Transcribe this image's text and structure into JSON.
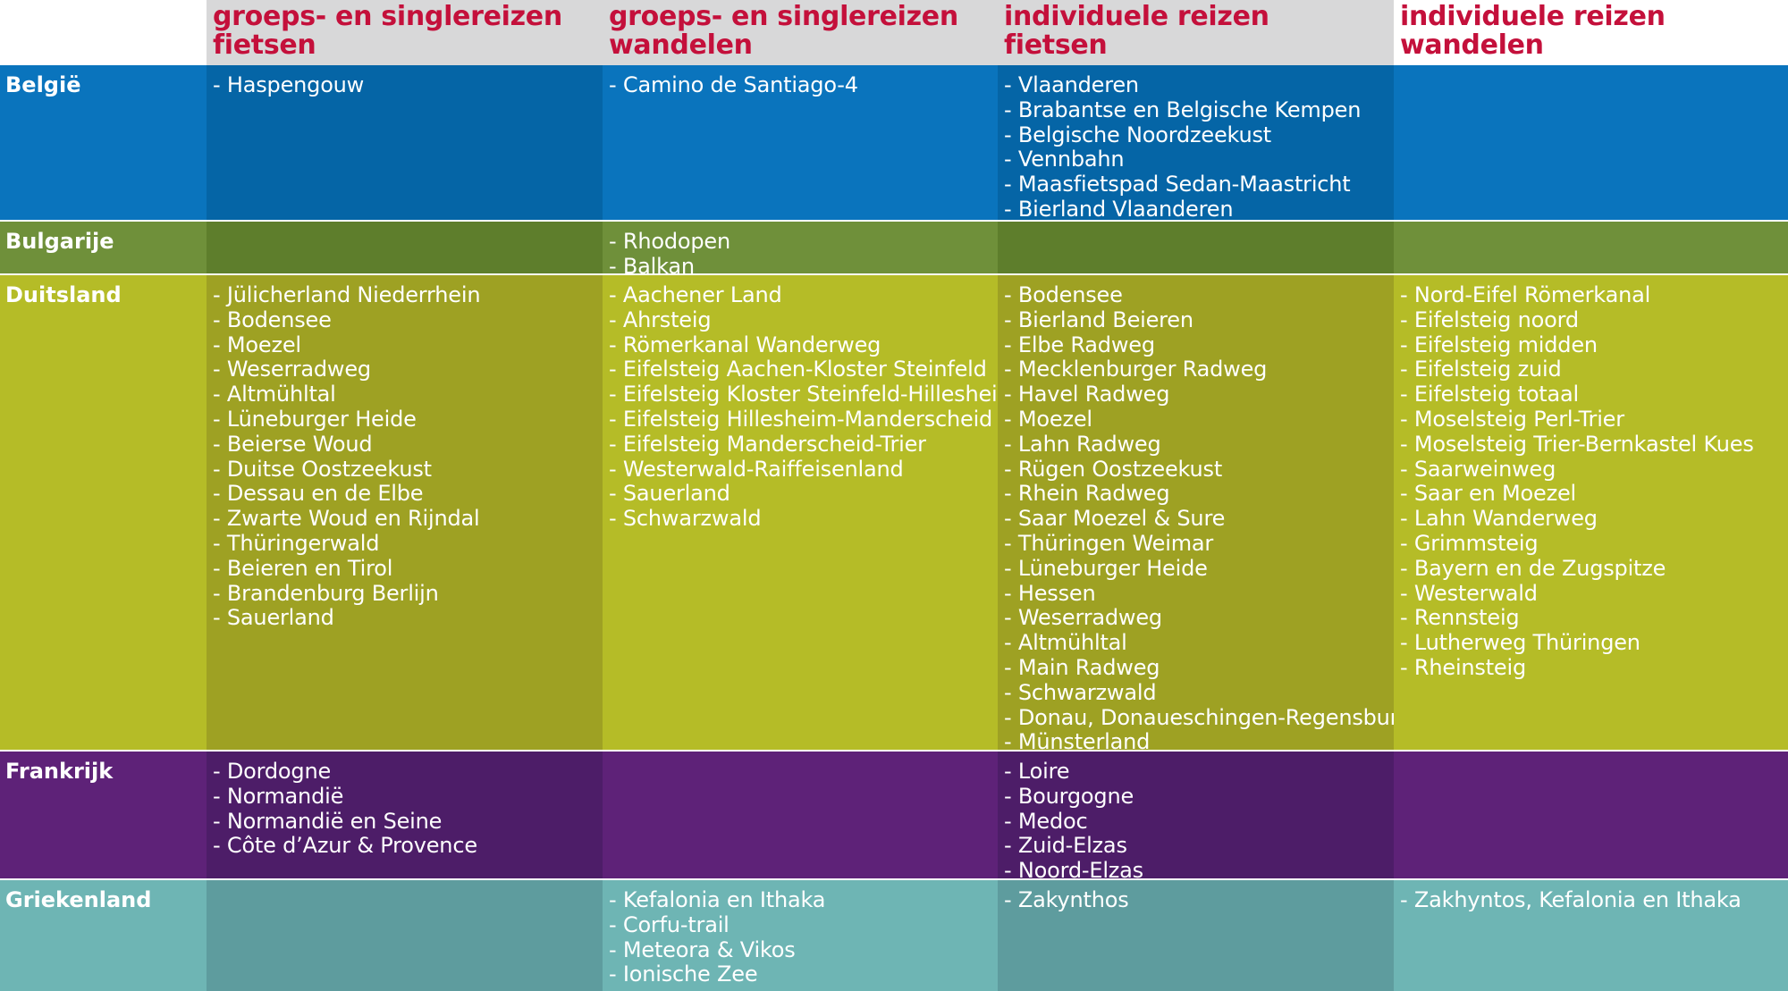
{
  "colors": {
    "header_text": "#c4103b",
    "header_shade": "#d8d8d9",
    "belgie": {
      "light": "#0a74bd",
      "dark": "#0565a6"
    },
    "bulgarije": {
      "light": "#6f903a",
      "dark": "#5e7e2c"
    },
    "duitsland": {
      "light": "#b5bc27",
      "dark": "#9ea123"
    },
    "frankrijk": {
      "light": "#5e2278",
      "dark": "#4d1d68"
    },
    "griekenland": {
      "light": "#6eb5b4",
      "dark": "#5e9c9e"
    }
  },
  "headers": [
    {
      "line1": "groeps- en singlereizen",
      "line2": "fietsen"
    },
    {
      "line1": "groeps- en singlereizen",
      "line2": "wandelen"
    },
    {
      "line1": "individuele reizen",
      "line2": "fietsen"
    },
    {
      "line1": "individuele reizen",
      "line2": "wandelen"
    }
  ],
  "rows": [
    {
      "country": "België",
      "columns": [
        [
          "- Haspengouw"
        ],
        [
          "- Camino de Santiago-4"
        ],
        [
          "- Vlaanderen",
          "- Brabantse en Belgische Kempen",
          "- Belgische Noordzeekust",
          "- Vennbahn",
          "- Maasfietspad Sedan-Maastricht",
          "- Bierland Vlaanderen"
        ],
        []
      ]
    },
    {
      "country": "Bulgarije",
      "columns": [
        [],
        [
          "- Rhodopen",
          "- Balkan"
        ],
        [],
        []
      ]
    },
    {
      "country": "Duitsland",
      "columns": [
        [
          "- Jülicherland Niederrhein",
          "- Bodensee",
          "- Moezel",
          "- Weserradweg",
          "- Altmühltal",
          "- Lüneburger Heide",
          "- Beierse Woud",
          "- Duitse Oostzeekust",
          "- Dessau en de Elbe",
          "- Zwarte Woud en Rijndal",
          "- Thüringerwald",
          "- Beieren en Tirol",
          "- Brandenburg Berlijn",
          "- Sauerland"
        ],
        [
          "- Aachener Land",
          "- Ahrsteig",
          "- Römerkanal Wanderweg",
          "- Eifelsteig Aachen-Kloster Steinfeld",
          "- Eifelsteig Kloster Steinfeld-Hillesheim",
          "- Eifelsteig Hillesheim-Manderscheid",
          "- Eifelsteig  Manderscheid-Trier",
          "- Westerwald-Raiffeisenland",
          "- Sauerland",
          "- Schwarzwald"
        ],
        [
          "- Bodensee",
          "- Bierland Beieren",
          "- Elbe Radweg",
          "- Mecklenburger Radweg",
          "- Havel Radweg",
          "- Moezel",
          "- Lahn Radweg",
          "- Rügen Oostzeekust",
          "- Rhein Radweg",
          "- Saar Moezel & Sure",
          "- Thüringen Weimar",
          "- Lüneburger Heide",
          "- Hessen",
          "- Weserradweg",
          "- Altmühltal",
          "- Main Radweg",
          "- Schwarzwald",
          "- Donau, Donaueschingen-Regensburg",
          "- Münsterland"
        ],
        [
          "- Nord-Eifel Römerkanal",
          "- Eifelsteig noord",
          "- Eifelsteig midden",
          "- Eifelsteig zuid",
          "- Eifelsteig totaal",
          "- Moselsteig Perl-Trier",
          "- Moselsteig Trier-Bernkastel Kues",
          "- Saarweinweg",
          "- Saar en Moezel",
          "- Lahn Wanderweg",
          "- Grimmsteig",
          "- Bayern en de Zugspitze",
          "- Westerwald",
          "- Rennsteig",
          "- Lutherweg Thüringen",
          "- Rheinsteig"
        ]
      ]
    },
    {
      "country": "Frankrijk",
      "columns": [
        [
          "- Dordogne",
          "- Normandië",
          "- Normandië en Seine",
          "- Côte d’Azur & Provence"
        ],
        [],
        [
          "- Loire",
          "- Bourgogne",
          "- Medoc",
          "- Zuid-Elzas",
          "- Noord-Elzas"
        ],
        []
      ]
    },
    {
      "country": "Griekenland",
      "columns": [
        [],
        [
          "- Kefalonia en Ithaka",
          "- Corfu-trail",
          "- Meteora & Vikos",
          "- Ionische Zee"
        ],
        [
          "- Zakynthos"
        ],
        [
          "- Zakhyntos, Kefalonia en Ithaka"
        ]
      ]
    }
  ]
}
